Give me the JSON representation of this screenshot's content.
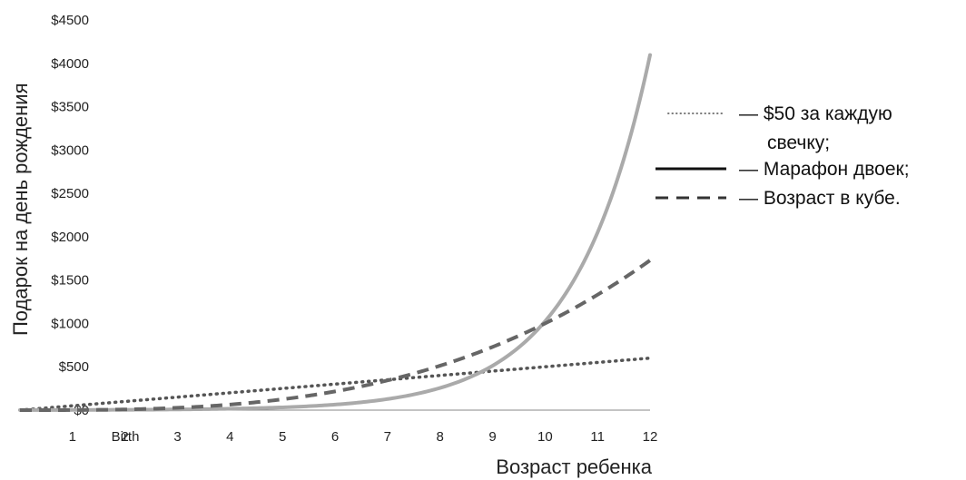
{
  "chart_data": {
    "type": "line",
    "title": "",
    "xlabel": "Возраст ребенка",
    "ylabel": "Подарок на день рождения",
    "x_tick_labels": [
      "Birth",
      "1",
      "2",
      "3",
      "4",
      "5",
      "6",
      "7",
      "8",
      "9",
      "10",
      "11",
      "12"
    ],
    "x": [
      0,
      1,
      2,
      3,
      4,
      5,
      6,
      7,
      8,
      9,
      10,
      11,
      12
    ],
    "xlim": [
      0,
      12
    ],
    "y_tick_labels": [
      "$0",
      "$500",
      "$1000",
      "$1500",
      "$2000",
      "$2500",
      "$3000",
      "$3500",
      "$4000",
      "$4500"
    ],
    "ylim": [
      0,
      4500
    ],
    "grid": false,
    "legend_position": "right",
    "series": [
      {
        "name": "$50 за каждую свечку;",
        "style": "dotted",
        "color": "#555555",
        "values": [
          0,
          50,
          100,
          150,
          200,
          250,
          300,
          350,
          400,
          450,
          500,
          550,
          600
        ]
      },
      {
        "name": "Марафон двоек;",
        "style": "solid",
        "color": "#aaaaaa",
        "values": [
          1,
          2,
          4,
          8,
          16,
          32,
          64,
          128,
          256,
          512,
          1024,
          2048,
          4096
        ]
      },
      {
        "name": "Возраст в кубе.",
        "style": "dashed",
        "color": "#666666",
        "values": [
          0,
          1,
          8,
          27,
          64,
          125,
          216,
          343,
          512,
          729,
          1000,
          1331,
          1728
        ]
      }
    ],
    "legend": [
      {
        "label_lines": [
          "— $50 за каждую",
          "свечку;"
        ],
        "style": "dotted"
      },
      {
        "label_lines": [
          "— Марафон двоек;"
        ],
        "style": "solid"
      },
      {
        "label_lines": [
          "— Возраст в кубе."
        ],
        "style": "dashed"
      }
    ]
  }
}
